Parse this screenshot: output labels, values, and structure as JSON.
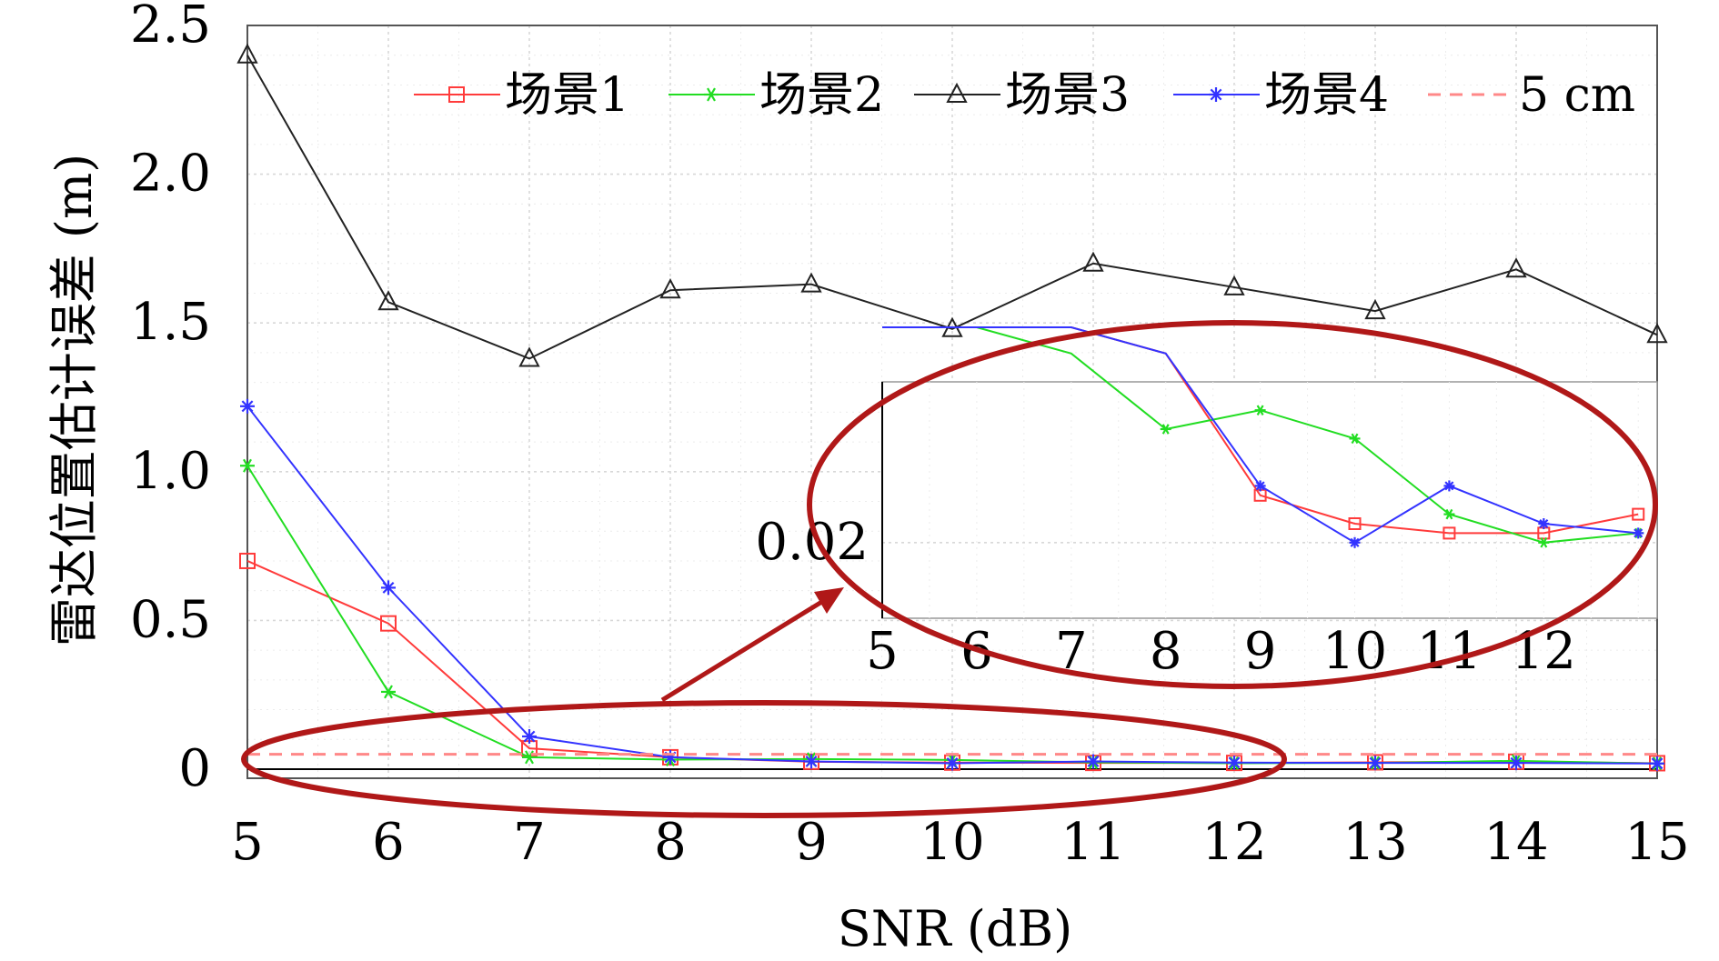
{
  "chart_data": {
    "type": "line",
    "xlabel": "SNR (dB)",
    "ylabel": "雷达位置估计误差 (m)",
    "x": [
      5,
      6,
      7,
      8,
      9,
      10,
      11,
      12,
      13,
      14,
      15
    ],
    "x_ticks": [
      "5",
      "6",
      "7",
      "8",
      "9",
      "10",
      "11",
      "12",
      "13",
      "14",
      "15"
    ],
    "xlim": [
      5,
      15
    ],
    "ylim": [
      0,
      2.5
    ],
    "y_ticks": [
      0,
      0.5,
      1.0,
      1.5,
      2.0,
      2.5
    ],
    "y_tick_labels": [
      "0",
      "0.5",
      "1.0",
      "1.5",
      "2.0",
      "2.5"
    ],
    "grid": true,
    "legend_position": "top",
    "series": [
      {
        "name": "场景1",
        "color": "#ff3b3b",
        "marker": "square",
        "values": [
          0.7,
          0.49,
          0.07,
          0.04,
          0.025,
          0.022,
          0.021,
          0.021,
          0.023,
          0.025,
          0.02
        ]
      },
      {
        "name": "场景2",
        "color": "#22dd22",
        "marker": "star",
        "values": [
          1.02,
          0.26,
          0.04,
          0.032,
          0.034,
          0.031,
          0.023,
          0.02,
          0.021,
          0.028,
          0.019
        ]
      },
      {
        "name": "场景3",
        "color": "#222222",
        "marker": "triangle",
        "values": [
          2.4,
          1.57,
          1.38,
          1.61,
          1.63,
          1.48,
          1.7,
          1.62,
          1.54,
          1.68,
          1.46
        ]
      },
      {
        "name": "场景4",
        "color": "#3333ff",
        "marker": "asterisk",
        "values": [
          1.22,
          0.61,
          0.11,
          0.04,
          0.026,
          0.02,
          0.026,
          0.022,
          0.021,
          0.021,
          0.019
        ]
      },
      {
        "name": "5 cm",
        "color": "#ff8888",
        "marker": "dashed",
        "values": [
          0.05,
          0.05,
          0.05,
          0.05,
          0.05,
          0.05,
          0.05,
          0.05,
          0.05,
          0.05,
          0.05
        ]
      }
    ],
    "inset": {
      "x_ticks": [
        "5",
        "6",
        "7",
        "8",
        "9",
        "10",
        "11",
        "12"
      ],
      "y_tick_label": "0.02",
      "y_tick_value": 0.02,
      "xlim": [
        5,
        13.2
      ],
      "ylim": [
        0.012,
        0.037
      ]
    },
    "annotations": {
      "highlight_color": "#b01818"
    }
  }
}
